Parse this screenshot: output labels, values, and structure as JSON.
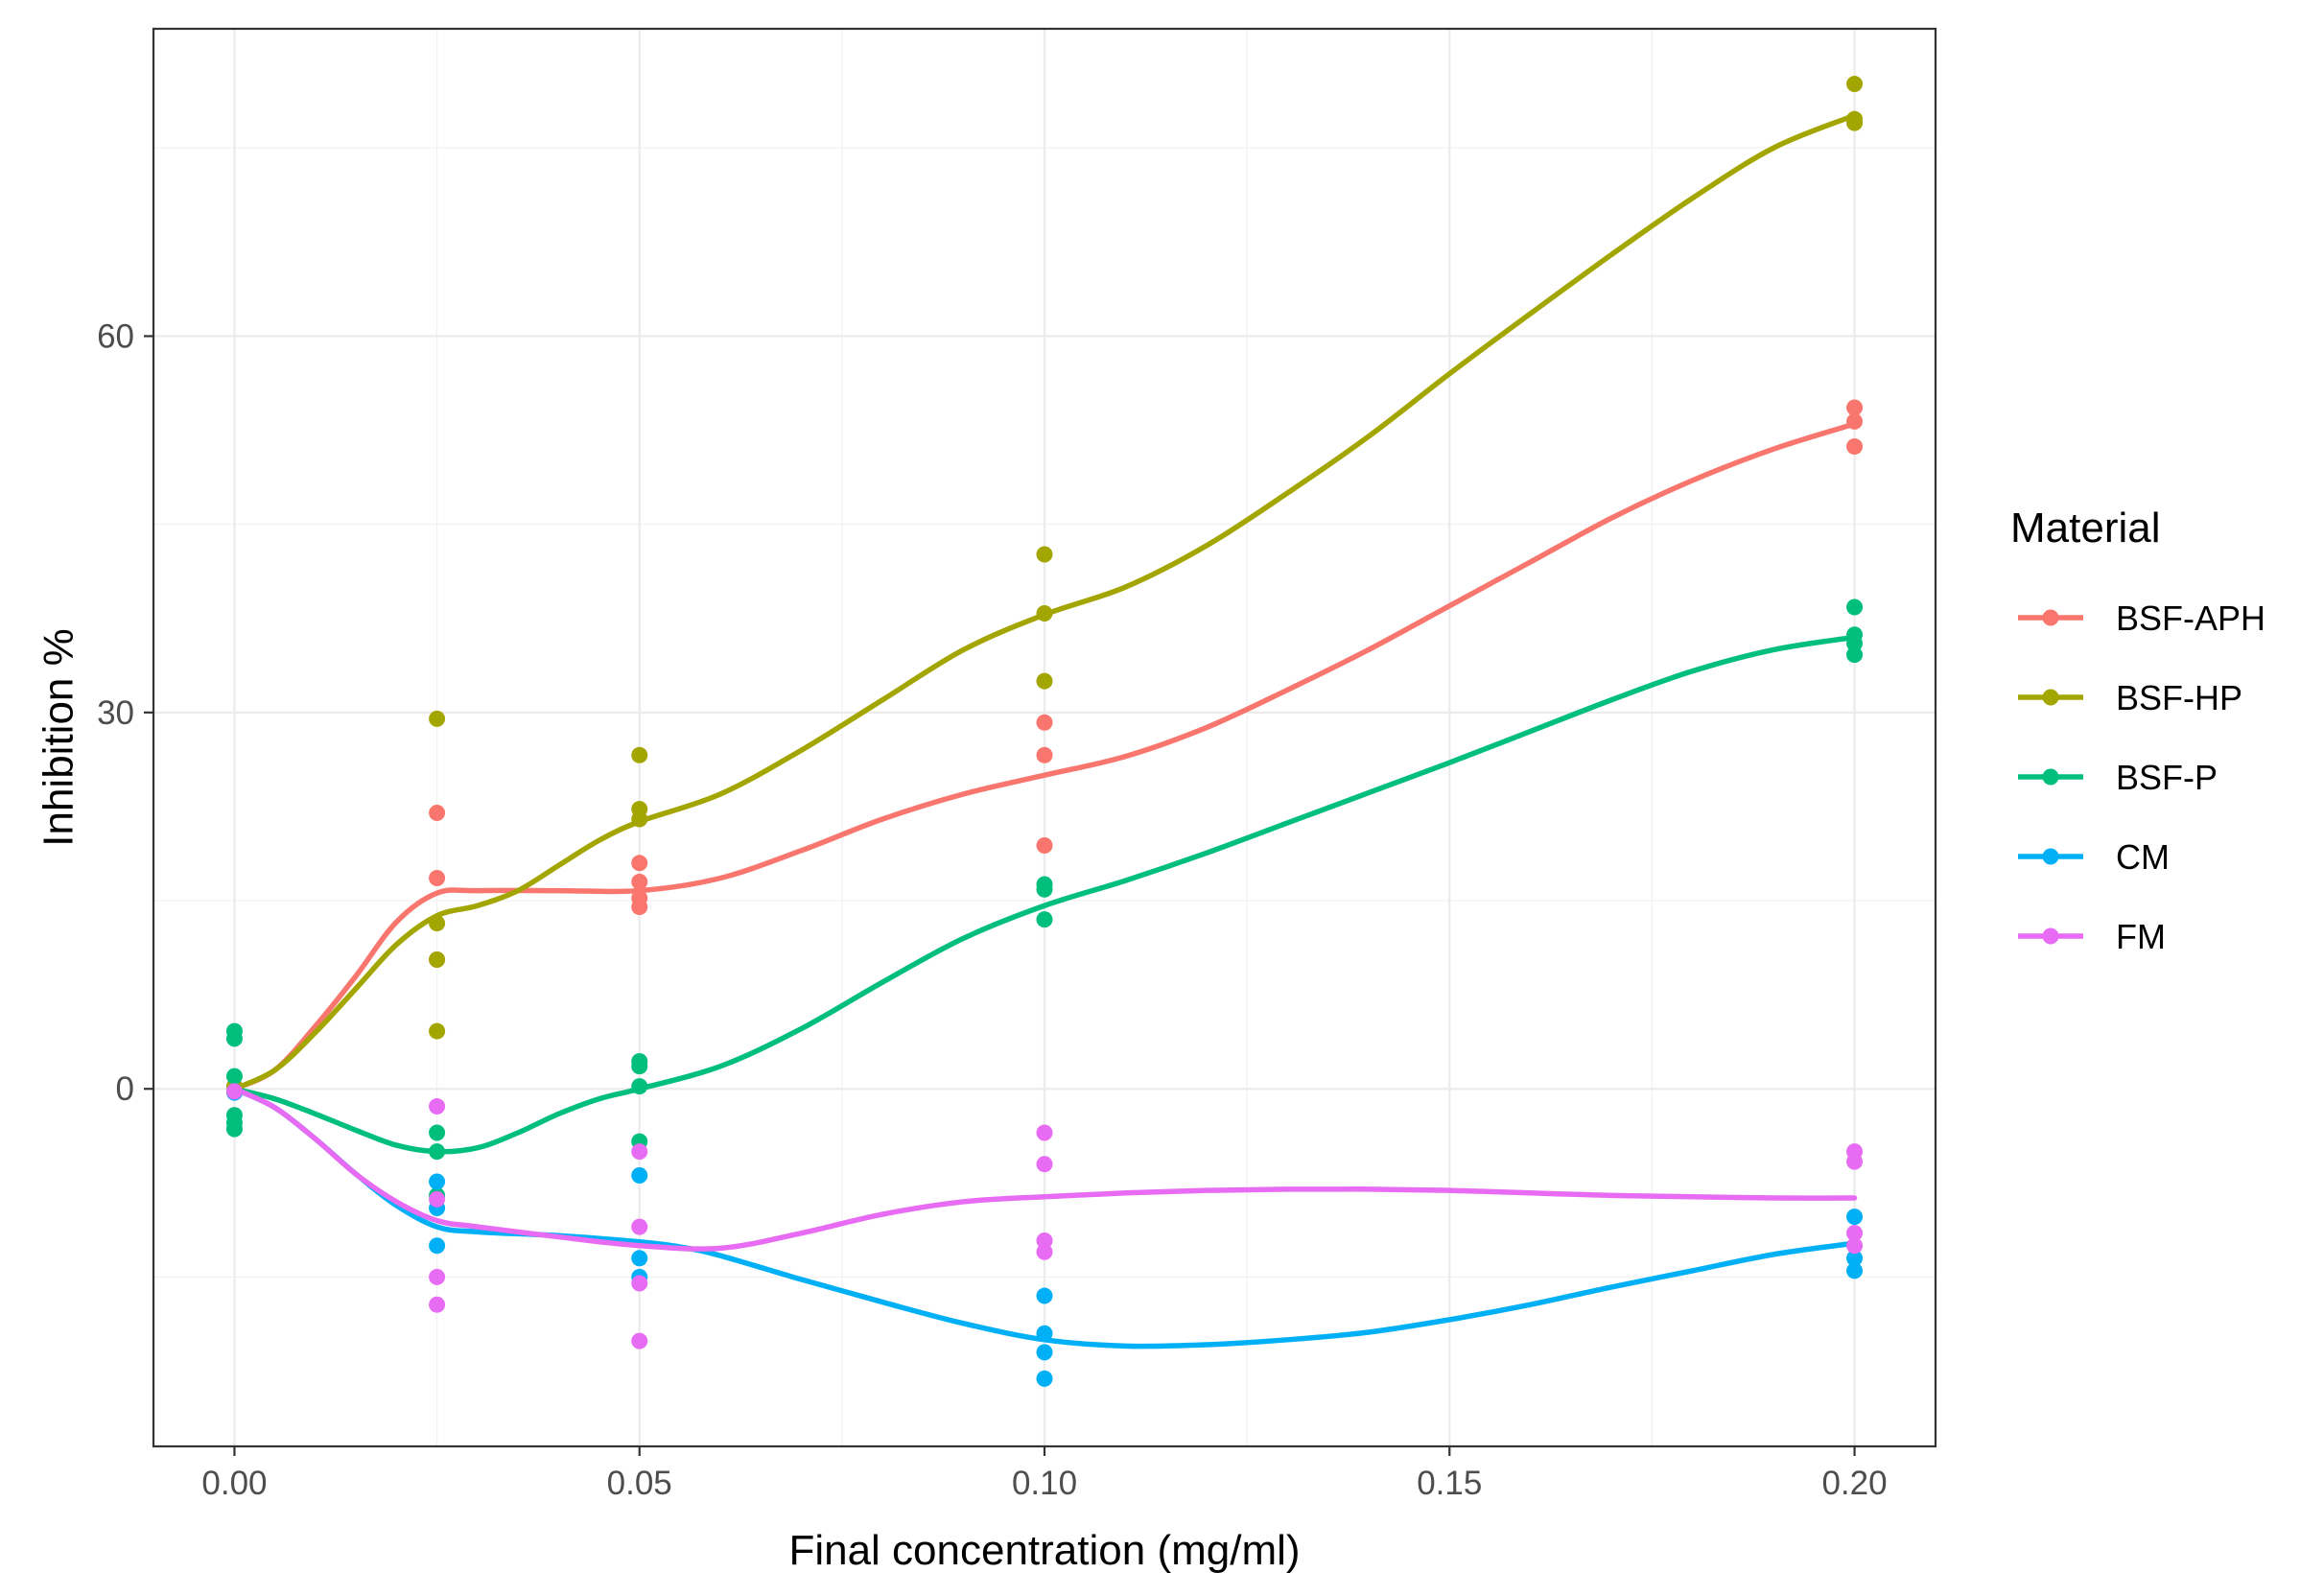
{
  "chart_data": {
    "type": "scatter",
    "title": "",
    "xlabel": "Final concentration (mg/ml)",
    "ylabel": "Inhibition %",
    "xlim": [
      -0.01,
      0.21
    ],
    "ylim": [
      -28.5,
      84.5
    ],
    "x_ticks": [
      0.0,
      0.05,
      0.1,
      0.15,
      0.2
    ],
    "x_tick_labels": [
      "0.00",
      "0.05",
      "0.10",
      "0.15",
      "0.20"
    ],
    "y_ticks": [
      0,
      30,
      60
    ],
    "y_tick_labels": [
      "0",
      "30",
      "60"
    ],
    "grid": true,
    "legend_title": "Material",
    "legend_position": "right",
    "series": [
      {
        "name": "BSF-APH",
        "color": "#F8766D",
        "points": [
          [
            0.0,
            0.2
          ],
          [
            0.025,
            22.0
          ],
          [
            0.025,
            16.8
          ],
          [
            0.025,
            10.3
          ],
          [
            0.05,
            18.0
          ],
          [
            0.05,
            16.5
          ],
          [
            0.05,
            15.2
          ],
          [
            0.05,
            14.5
          ],
          [
            0.1,
            29.2
          ],
          [
            0.1,
            26.6
          ],
          [
            0.1,
            19.4
          ],
          [
            0.2,
            54.3
          ],
          [
            0.2,
            53.2
          ],
          [
            0.2,
            51.2
          ]
        ],
        "curve": [
          [
            0.0,
            0.0
          ],
          [
            0.005,
            1.5
          ],
          [
            0.01,
            5.0
          ],
          [
            0.015,
            9.0
          ],
          [
            0.02,
            13.3
          ],
          [
            0.025,
            15.6
          ],
          [
            0.03,
            15.8
          ],
          [
            0.04,
            15.8
          ],
          [
            0.05,
            15.8
          ],
          [
            0.06,
            16.8
          ],
          [
            0.07,
            19.0
          ],
          [
            0.08,
            21.5
          ],
          [
            0.09,
            23.5
          ],
          [
            0.1,
            25.0
          ],
          [
            0.11,
            26.5
          ],
          [
            0.12,
            28.8
          ],
          [
            0.13,
            31.8
          ],
          [
            0.14,
            35.0
          ],
          [
            0.15,
            38.5
          ],
          [
            0.16,
            42.0
          ],
          [
            0.17,
            45.5
          ],
          [
            0.18,
            48.5
          ],
          [
            0.19,
            51.0
          ],
          [
            0.2,
            53.0
          ]
        ]
      },
      {
        "name": "BSF-HP",
        "color": "#A3A500",
        "points": [
          [
            0.0,
            0.2
          ],
          [
            0.025,
            29.5
          ],
          [
            0.025,
            13.2
          ],
          [
            0.025,
            10.3
          ],
          [
            0.025,
            4.6
          ],
          [
            0.05,
            26.6
          ],
          [
            0.05,
            22.3
          ],
          [
            0.05,
            21.5
          ],
          [
            0.1,
            42.6
          ],
          [
            0.1,
            37.9
          ],
          [
            0.1,
            32.5
          ],
          [
            0.2,
            80.1
          ],
          [
            0.2,
            77.3
          ],
          [
            0.2,
            77.0
          ]
        ],
        "curve": [
          [
            0.0,
            0.0
          ],
          [
            0.005,
            1.5
          ],
          [
            0.01,
            4.5
          ],
          [
            0.015,
            8.0
          ],
          [
            0.02,
            11.5
          ],
          [
            0.025,
            13.8
          ],
          [
            0.03,
            14.6
          ],
          [
            0.035,
            15.8
          ],
          [
            0.04,
            17.8
          ],
          [
            0.045,
            19.8
          ],
          [
            0.05,
            21.3
          ],
          [
            0.06,
            23.5
          ],
          [
            0.07,
            27.0
          ],
          [
            0.08,
            31.0
          ],
          [
            0.09,
            35.0
          ],
          [
            0.1,
            37.8
          ],
          [
            0.11,
            40.0
          ],
          [
            0.12,
            43.3
          ],
          [
            0.13,
            47.5
          ],
          [
            0.14,
            52.0
          ],
          [
            0.15,
            57.0
          ],
          [
            0.16,
            61.8
          ],
          [
            0.17,
            66.5
          ],
          [
            0.18,
            71.0
          ],
          [
            0.19,
            75.0
          ],
          [
            0.2,
            77.6
          ]
        ]
      },
      {
        "name": "BSF-P",
        "color": "#00BF7D",
        "points": [
          [
            0.0,
            4.6
          ],
          [
            0.0,
            4.0
          ],
          [
            0.0,
            1.0
          ],
          [
            0.0,
            -0.2
          ],
          [
            0.0,
            -2.1
          ],
          [
            0.0,
            -2.7
          ],
          [
            0.0,
            -3.2
          ],
          [
            0.025,
            -3.5
          ],
          [
            0.025,
            -5.0
          ],
          [
            0.025,
            -8.5
          ],
          [
            0.05,
            2.2
          ],
          [
            0.05,
            1.8
          ],
          [
            0.05,
            0.2
          ],
          [
            0.05,
            -4.2
          ],
          [
            0.1,
            16.3
          ],
          [
            0.1,
            15.9
          ],
          [
            0.1,
            13.5
          ],
          [
            0.2,
            38.4
          ],
          [
            0.2,
            36.2
          ],
          [
            0.2,
            35.5
          ],
          [
            0.2,
            34.6
          ]
        ],
        "curve": [
          [
            0.0,
            0.0
          ],
          [
            0.005,
            -0.8
          ],
          [
            0.01,
            -2.0
          ],
          [
            0.015,
            -3.3
          ],
          [
            0.02,
            -4.5
          ],
          [
            0.025,
            -5.0
          ],
          [
            0.03,
            -4.7
          ],
          [
            0.035,
            -3.5
          ],
          [
            0.04,
            -2.0
          ],
          [
            0.045,
            -0.8
          ],
          [
            0.05,
            0.0
          ],
          [
            0.06,
            1.8
          ],
          [
            0.07,
            4.8
          ],
          [
            0.08,
            8.5
          ],
          [
            0.09,
            12.0
          ],
          [
            0.1,
            14.6
          ],
          [
            0.11,
            16.6
          ],
          [
            0.12,
            18.8
          ],
          [
            0.13,
            21.2
          ],
          [
            0.14,
            23.6
          ],
          [
            0.15,
            26.0
          ],
          [
            0.16,
            28.5
          ],
          [
            0.17,
            31.0
          ],
          [
            0.18,
            33.3
          ],
          [
            0.19,
            35.0
          ],
          [
            0.2,
            36.0
          ]
        ]
      },
      {
        "name": "CM",
        "color": "#00B0F6",
        "points": [
          [
            0.0,
            -0.3
          ],
          [
            0.025,
            -7.4
          ],
          [
            0.025,
            -9.5
          ],
          [
            0.025,
            -12.5
          ],
          [
            0.05,
            -6.9
          ],
          [
            0.05,
            -13.5
          ],
          [
            0.05,
            -15.0
          ],
          [
            0.1,
            -16.5
          ],
          [
            0.1,
            -19.5
          ],
          [
            0.1,
            -21.0
          ],
          [
            0.1,
            -23.1
          ],
          [
            0.2,
            -10.2
          ],
          [
            0.2,
            -13.5
          ],
          [
            0.2,
            -14.5
          ]
        ],
        "curve": [
          [
            0.0,
            0.0
          ],
          [
            0.005,
            -1.5
          ],
          [
            0.01,
            -4.0
          ],
          [
            0.015,
            -6.8
          ],
          [
            0.02,
            -9.3
          ],
          [
            0.025,
            -11.0
          ],
          [
            0.03,
            -11.4
          ],
          [
            0.04,
            -11.7
          ],
          [
            0.05,
            -12.2
          ],
          [
            0.055,
            -12.6
          ],
          [
            0.06,
            -13.3
          ],
          [
            0.07,
            -15.2
          ],
          [
            0.08,
            -17.0
          ],
          [
            0.09,
            -18.7
          ],
          [
            0.1,
            -20.0
          ],
          [
            0.11,
            -20.5
          ],
          [
            0.12,
            -20.4
          ],
          [
            0.13,
            -20.0
          ],
          [
            0.14,
            -19.4
          ],
          [
            0.15,
            -18.4
          ],
          [
            0.16,
            -17.2
          ],
          [
            0.17,
            -15.8
          ],
          [
            0.18,
            -14.5
          ],
          [
            0.19,
            -13.2
          ],
          [
            0.2,
            -12.3
          ]
        ]
      },
      {
        "name": "FM",
        "color": "#E76BF3",
        "points": [
          [
            0.0,
            -0.2
          ],
          [
            0.025,
            -1.4
          ],
          [
            0.025,
            -8.8
          ],
          [
            0.025,
            -15.0
          ],
          [
            0.025,
            -17.2
          ],
          [
            0.05,
            -5.0
          ],
          [
            0.05,
            -11.0
          ],
          [
            0.05,
            -15.5
          ],
          [
            0.05,
            -20.1
          ],
          [
            0.1,
            -3.5
          ],
          [
            0.1,
            -6.0
          ],
          [
            0.1,
            -12.1
          ],
          [
            0.1,
            -13.0
          ],
          [
            0.2,
            -5.0
          ],
          [
            0.2,
            -5.8
          ],
          [
            0.2,
            -11.5
          ],
          [
            0.2,
            -12.5
          ]
        ],
        "curve": [
          [
            0.0,
            0.0
          ],
          [
            0.005,
            -1.5
          ],
          [
            0.01,
            -4.0
          ],
          [
            0.015,
            -6.8
          ],
          [
            0.02,
            -9.0
          ],
          [
            0.025,
            -10.5
          ],
          [
            0.03,
            -11.0
          ],
          [
            0.04,
            -11.8
          ],
          [
            0.05,
            -12.5
          ],
          [
            0.06,
            -12.7
          ],
          [
            0.07,
            -11.5
          ],
          [
            0.08,
            -10.0
          ],
          [
            0.09,
            -9.0
          ],
          [
            0.1,
            -8.6
          ],
          [
            0.11,
            -8.3
          ],
          [
            0.12,
            -8.1
          ],
          [
            0.13,
            -8.0
          ],
          [
            0.14,
            -8.0
          ],
          [
            0.15,
            -8.1
          ],
          [
            0.16,
            -8.3
          ],
          [
            0.17,
            -8.5
          ],
          [
            0.18,
            -8.6
          ],
          [
            0.19,
            -8.7
          ],
          [
            0.2,
            -8.7
          ]
        ]
      }
    ]
  }
}
